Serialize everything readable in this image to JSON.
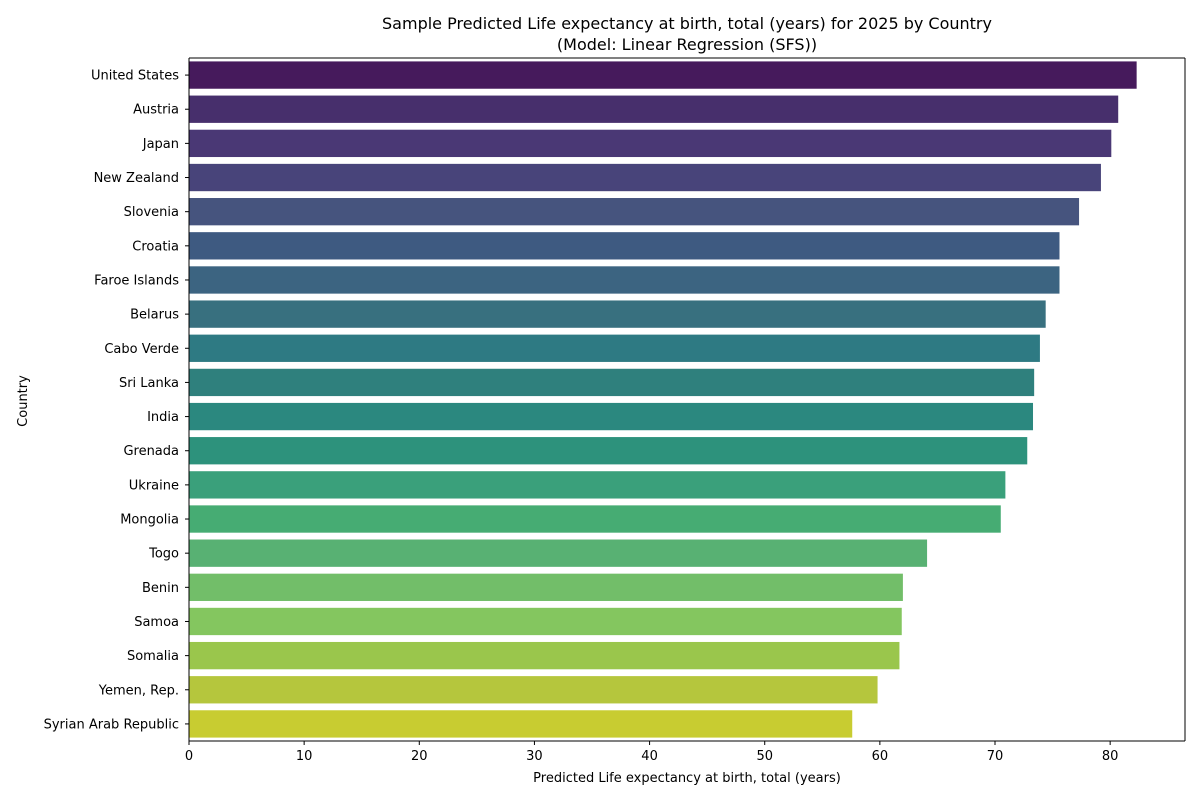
{
  "chart_data": {
    "type": "bar",
    "orientation": "horizontal",
    "title": "Sample Predicted Life expectancy at birth, total (years) for 2025 by Country",
    "subtitle": "(Model: Linear Regression (SFS))",
    "xlabel": "Predicted Life expectancy at birth, total (years)",
    "ylabel": "Country",
    "xlim": [
      0,
      86.5
    ],
    "xticks": [
      0,
      10,
      20,
      30,
      40,
      50,
      60,
      70,
      80
    ],
    "grid": false,
    "categories": [
      "United States",
      "Austria",
      "Japan",
      "New Zealand",
      "Slovenia",
      "Croatia",
      "Faroe Islands",
      "Belarus",
      "Cabo Verde",
      "Sri Lanka",
      "India",
      "Grenada",
      "Ukraine",
      "Mongolia",
      "Togo",
      "Benin",
      "Samoa",
      "Somalia",
      "Yemen, Rep.",
      "Syrian Arab Republic"
    ],
    "values": [
      82.3,
      80.7,
      80.1,
      79.2,
      77.3,
      75.6,
      75.6,
      74.4,
      73.9,
      73.4,
      73.3,
      72.8,
      70.9,
      70.5,
      64.1,
      62.0,
      61.9,
      61.7,
      59.8,
      57.6
    ],
    "colors": [
      "#461a5c",
      "#472f6c",
      "#4a3875",
      "#48447a",
      "#46547e",
      "#3e5a81",
      "#3c6481",
      "#38707f",
      "#2e7a83",
      "#2f807d",
      "#2b887f",
      "#2d927c",
      "#3aa07b",
      "#46ac73",
      "#58b173",
      "#72be69",
      "#84c65f",
      "#9ac64c",
      "#b5c63d",
      "#c8cc31"
    ]
  }
}
